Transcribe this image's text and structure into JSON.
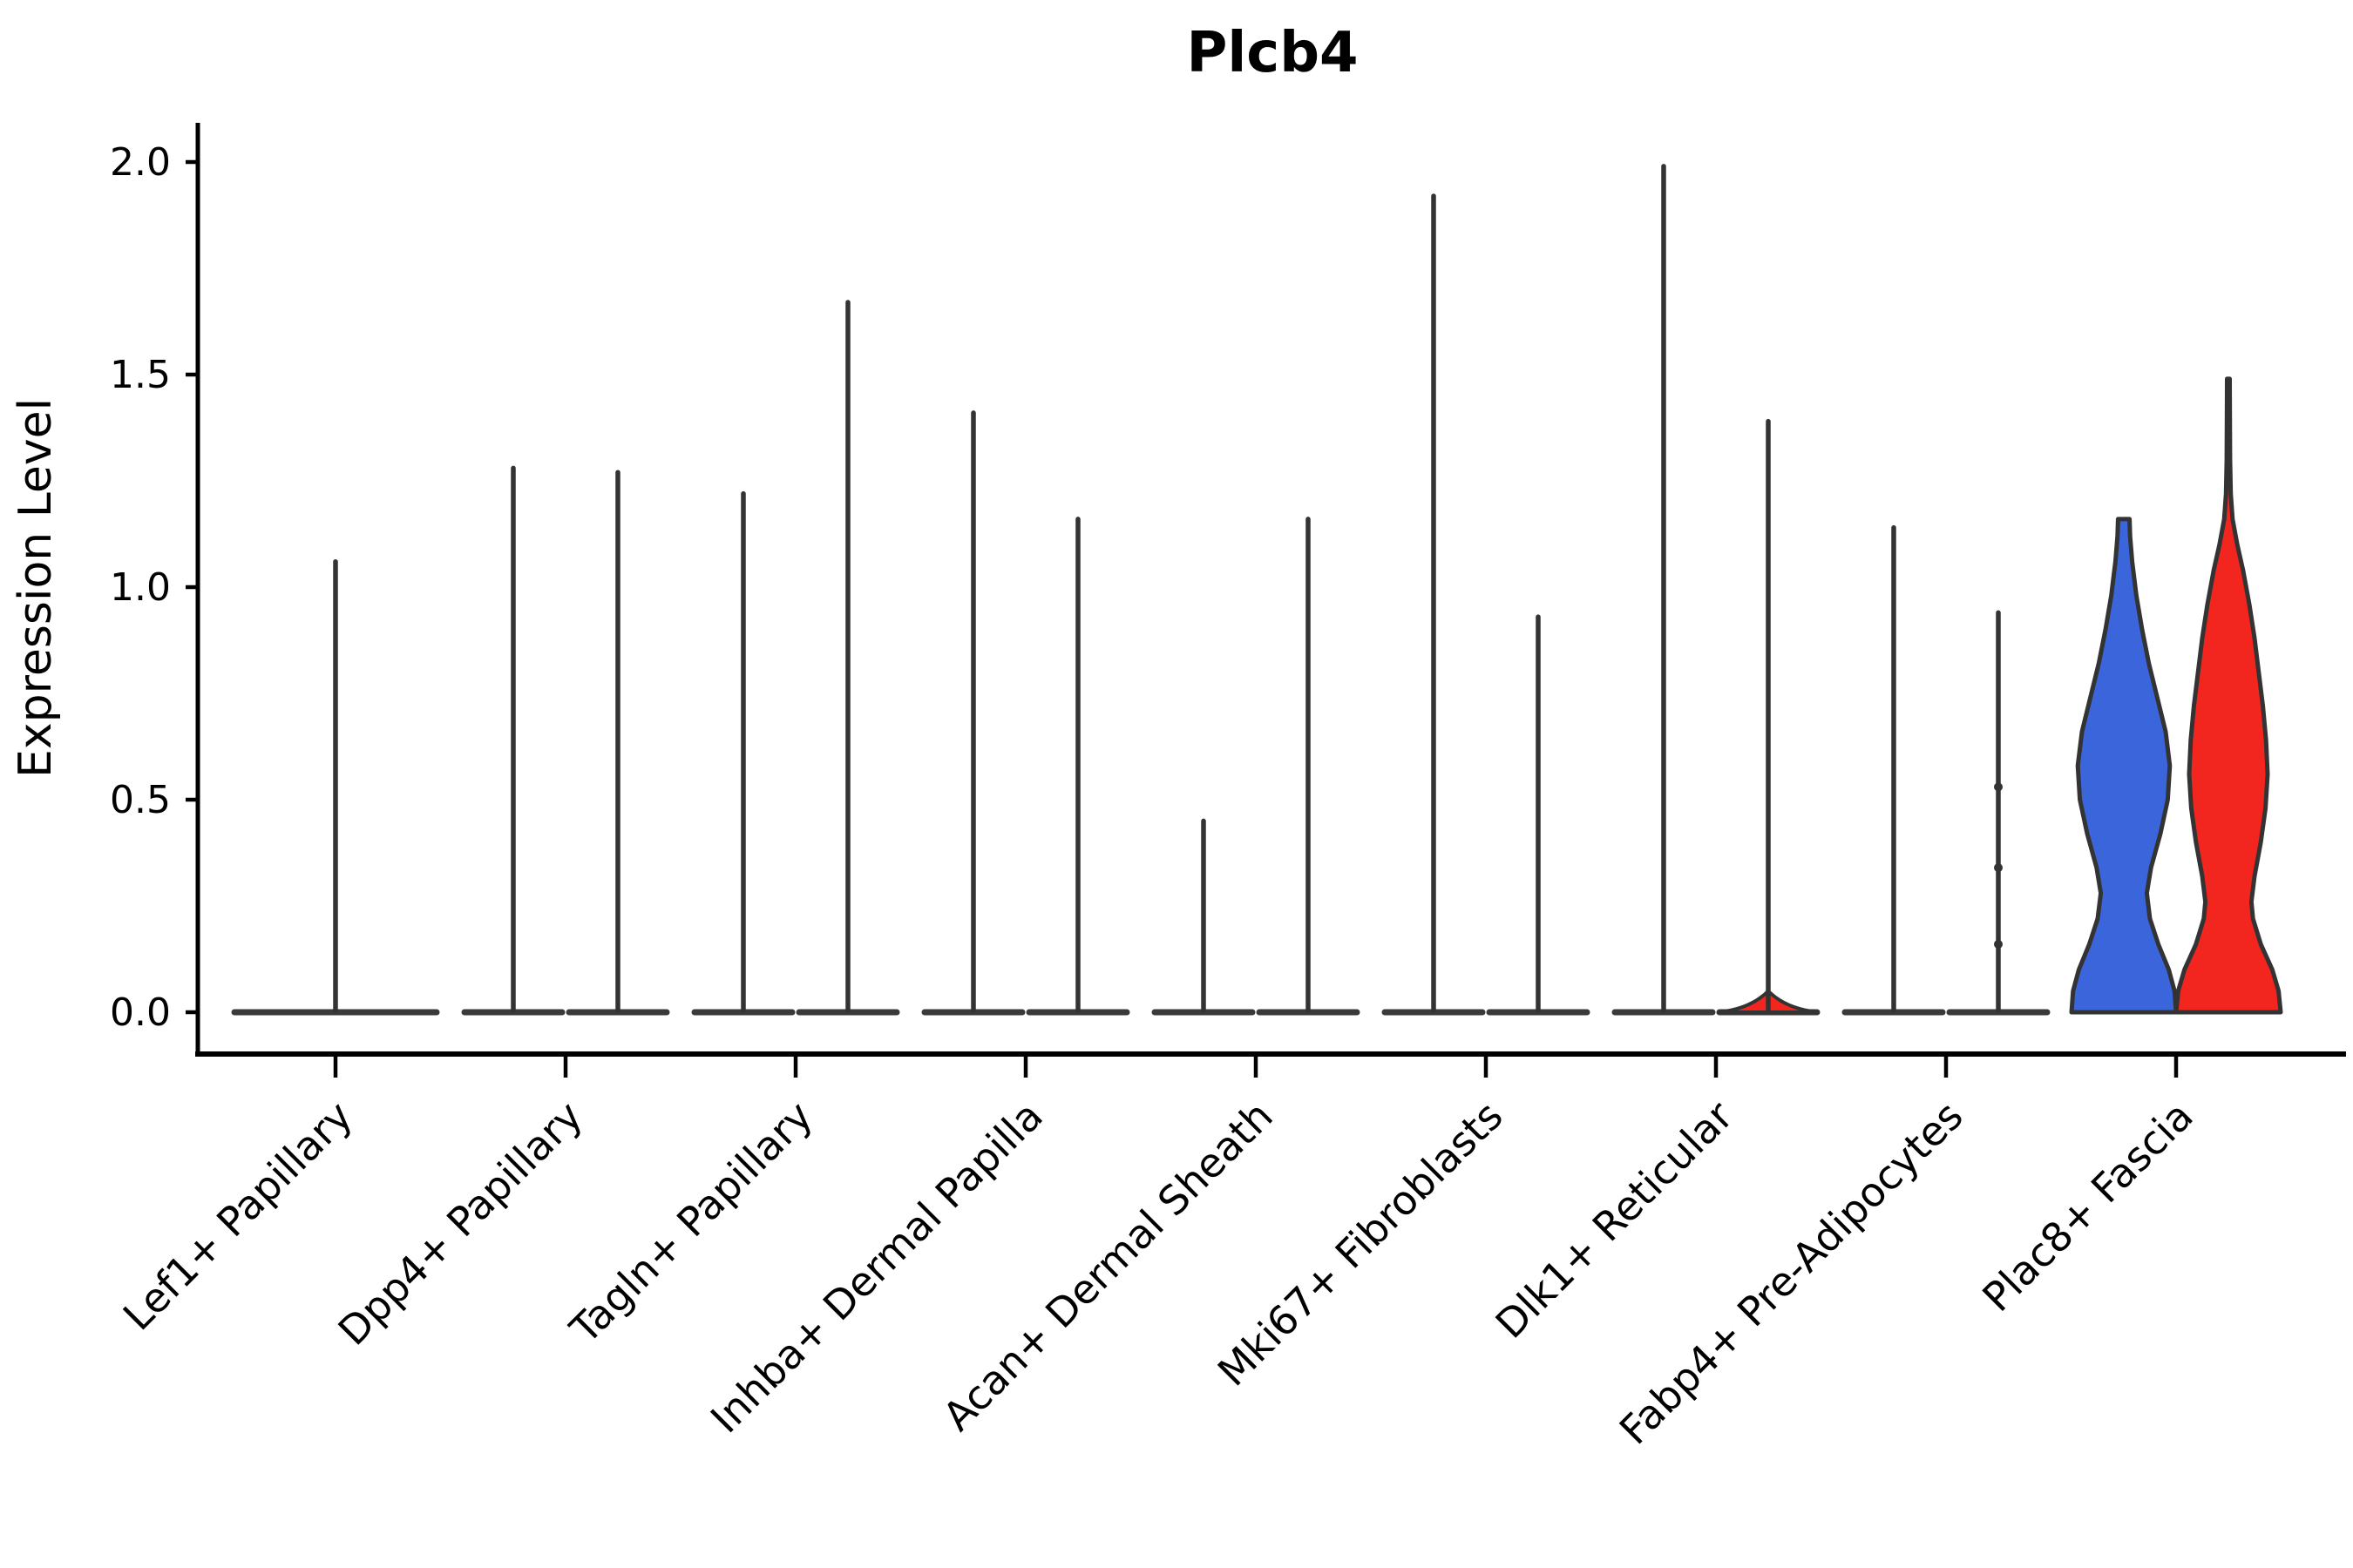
{
  "figure": {
    "title": "Plcb4",
    "y_axis": {
      "label": "Expression Level",
      "ticks": [
        "2.0",
        "1.5",
        "1.0",
        "0.5",
        "0.0"
      ]
    },
    "x_axis": {
      "categories": [
        "Lef1+ Papillary",
        "Dpp4+ Papillary",
        "Tagln+ Papillary",
        "Inhba+ Dermal Papilla",
        "Acan+ Dermal Sheath",
        "Mki67+ Fibroblasts",
        "Dlk1+ Reticular",
        "Fabp4+ Pre-Adipocytes",
        "Plac8+ Fascia"
      ]
    }
  },
  "colors": {
    "blue": "#3B66DB",
    "red": "#F2261F",
    "outline": "#333333",
    "collapsed_bar": "#3A3A3A",
    "axis": "#000000"
  },
  "chart_data": {
    "type": "violin",
    "title": "Plcb4",
    "ylabel": "Expression Level",
    "xlabel": "",
    "ylim": [
      0,
      2.0
    ],
    "yticks": [
      0.0,
      0.5,
      1.0,
      1.5,
      2.0
    ],
    "grid": false,
    "legend_position": "none",
    "split_groups": [
      "blue",
      "red"
    ],
    "categories": [
      {
        "label": "Lef1+ Papillary",
        "violins": [
          {
            "group": "blue",
            "span": "full",
            "shape": "collapsed",
            "max": 1.06
          }
        ]
      },
      {
        "label": "Dpp4+ Papillary",
        "violins": [
          {
            "group": "blue",
            "shape": "collapsed",
            "max": 1.28
          },
          {
            "group": "red",
            "shape": "collapsed",
            "max": 1.27
          }
        ]
      },
      {
        "label": "Tagln+ Papillary",
        "violins": [
          {
            "group": "blue",
            "shape": "collapsed",
            "max": 1.22
          },
          {
            "group": "red",
            "shape": "collapsed",
            "max": 1.67
          }
        ]
      },
      {
        "label": "Inhba+ Dermal Papilla",
        "violins": [
          {
            "group": "blue",
            "shape": "collapsed",
            "max": 1.41
          },
          {
            "group": "red",
            "shape": "collapsed",
            "max": 1.16
          }
        ]
      },
      {
        "label": "Acan+ Dermal Sheath",
        "violins": [
          {
            "group": "blue",
            "shape": "collapsed",
            "max": 0.45
          },
          {
            "group": "red",
            "shape": "collapsed",
            "max": 1.16
          }
        ]
      },
      {
        "label": "Mki67+ Fibroblasts",
        "violins": [
          {
            "group": "blue",
            "shape": "collapsed",
            "max": 1.92
          },
          {
            "group": "red",
            "shape": "collapsed",
            "max": 0.93
          }
        ]
      },
      {
        "label": "Dlk1+ Reticular",
        "violins": [
          {
            "group": "blue",
            "shape": "collapsed",
            "max": 1.99
          },
          {
            "group": "red",
            "shape": "collapsed",
            "max": 1.39,
            "base_bump": {
              "height": 0.05,
              "halfwidth_frac": 0.95
            }
          }
        ]
      },
      {
        "label": "Fabp4+ Pre-Adipocytes",
        "violins": [
          {
            "group": "blue",
            "shape": "collapsed",
            "max": 1.14
          },
          {
            "group": "red",
            "shape": "collapsed",
            "max": 0.94,
            "dots": [
              0.53,
              0.34,
              0.16
            ]
          }
        ]
      },
      {
        "label": "Plac8+ Fascia",
        "violins": [
          {
            "group": "blue",
            "shape": "full",
            "max": 1.16,
            "profile": [
              [
                0.0,
                1.0
              ],
              [
                0.05,
                0.97
              ],
              [
                0.1,
                0.86
              ],
              [
                0.16,
                0.66
              ],
              [
                0.22,
                0.5
              ],
              [
                0.28,
                0.44
              ],
              [
                0.34,
                0.52
              ],
              [
                0.42,
                0.7
              ],
              [
                0.5,
                0.84
              ],
              [
                0.58,
                0.88
              ],
              [
                0.66,
                0.8
              ],
              [
                0.74,
                0.64
              ],
              [
                0.82,
                0.48
              ],
              [
                0.9,
                0.35
              ],
              [
                0.98,
                0.24
              ],
              [
                1.06,
                0.16
              ],
              [
                1.12,
                0.12
              ],
              [
                1.16,
                0.11
              ]
            ]
          },
          {
            "group": "red",
            "shape": "full",
            "max": 1.49,
            "profile": [
              [
                0.0,
                1.0
              ],
              [
                0.05,
                0.96
              ],
              [
                0.1,
                0.84
              ],
              [
                0.16,
                0.62
              ],
              [
                0.22,
                0.47
              ],
              [
                0.26,
                0.44
              ],
              [
                0.32,
                0.5
              ],
              [
                0.4,
                0.62
              ],
              [
                0.48,
                0.71
              ],
              [
                0.56,
                0.75
              ],
              [
                0.64,
                0.72
              ],
              [
                0.72,
                0.66
              ],
              [
                0.8,
                0.58
              ],
              [
                0.88,
                0.5
              ],
              [
                0.96,
                0.4
              ],
              [
                1.04,
                0.28
              ],
              [
                1.1,
                0.17
              ],
              [
                1.16,
                0.08
              ],
              [
                1.22,
                0.045
              ],
              [
                1.3,
                0.032
              ],
              [
                1.4,
                0.028
              ],
              [
                1.49,
                0.025
              ]
            ]
          }
        ]
      }
    ]
  }
}
